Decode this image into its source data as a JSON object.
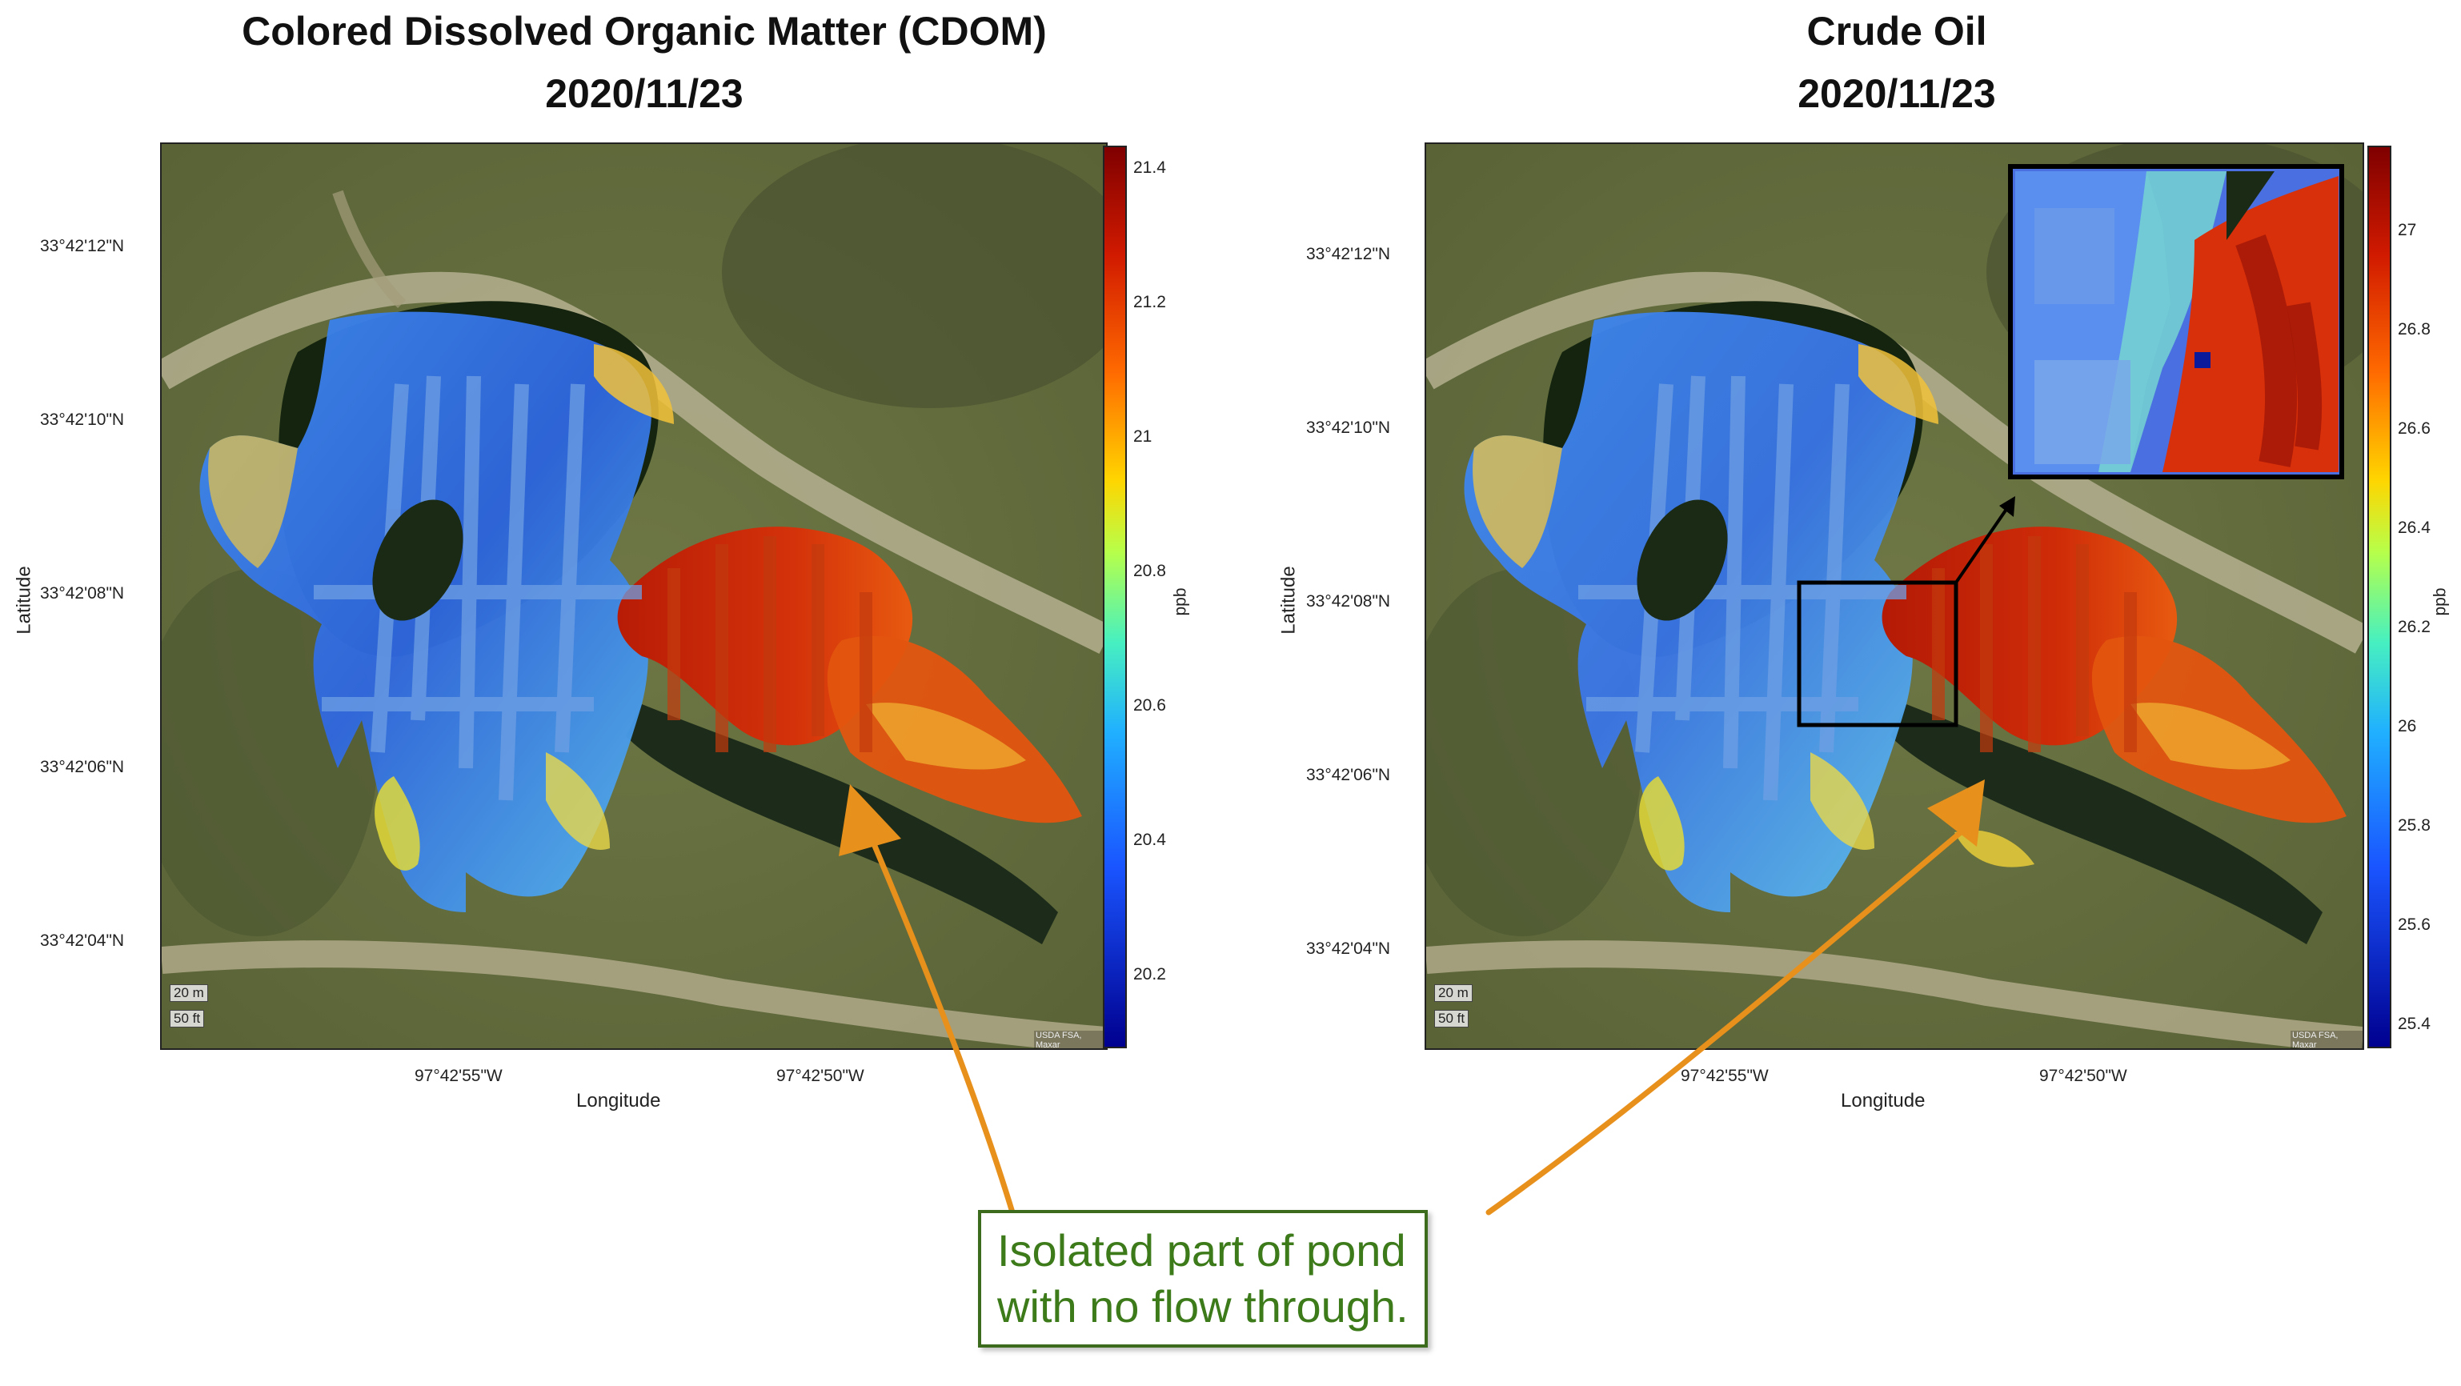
{
  "left_panel": {
    "title_line1": "Colored Dissolved Organic Matter (CDOM)",
    "title_line2": "2020/11/23",
    "y_ticks": [
      "33°42'12\"N",
      "33°42'10\"N",
      "33°42'08\"N",
      "33°42'06\"N",
      "33°42'04\"N"
    ],
    "x_ticks": [
      "97°42'55\"W",
      "97°42'50\"W"
    ],
    "xlabel": "Longitude",
    "ylabel": "Latitude",
    "colorbar_ticks": [
      "21.4",
      "21.2",
      "21",
      "20.8",
      "20.6",
      "20.4",
      "20.2"
    ],
    "colorbar_unit": "ppb",
    "scale_m": "20 m",
    "scale_ft": "50 ft",
    "attribution": "USDA FSA, Maxar"
  },
  "right_panel": {
    "title_line1": "Crude Oil",
    "title_line2": "2020/11/23",
    "y_ticks": [
      "33°42'12\"N",
      "33°42'10\"N",
      "33°42'08\"N",
      "33°42'06\"N",
      "33°42'04\"N"
    ],
    "x_ticks": [
      "97°42'55\"W",
      "97°42'50\"W"
    ],
    "xlabel": "Longitude",
    "ylabel": "Latitude",
    "colorbar_ticks": [
      "27",
      "26.8",
      "26.6",
      "26.4",
      "26.2",
      "26",
      "25.8",
      "25.6",
      "25.4"
    ],
    "colorbar_unit": "ppb",
    "scale_m": "20 m",
    "scale_ft": "50 ft",
    "attribution": "USDA FSA, Maxar"
  },
  "callout": {
    "line1": "Isolated part of pond",
    "line2": "with no flow through."
  },
  "colors": {
    "arrow": "#e8901c",
    "callout_border": "#3c6b1e",
    "callout_text": "#3c7a1a"
  }
}
